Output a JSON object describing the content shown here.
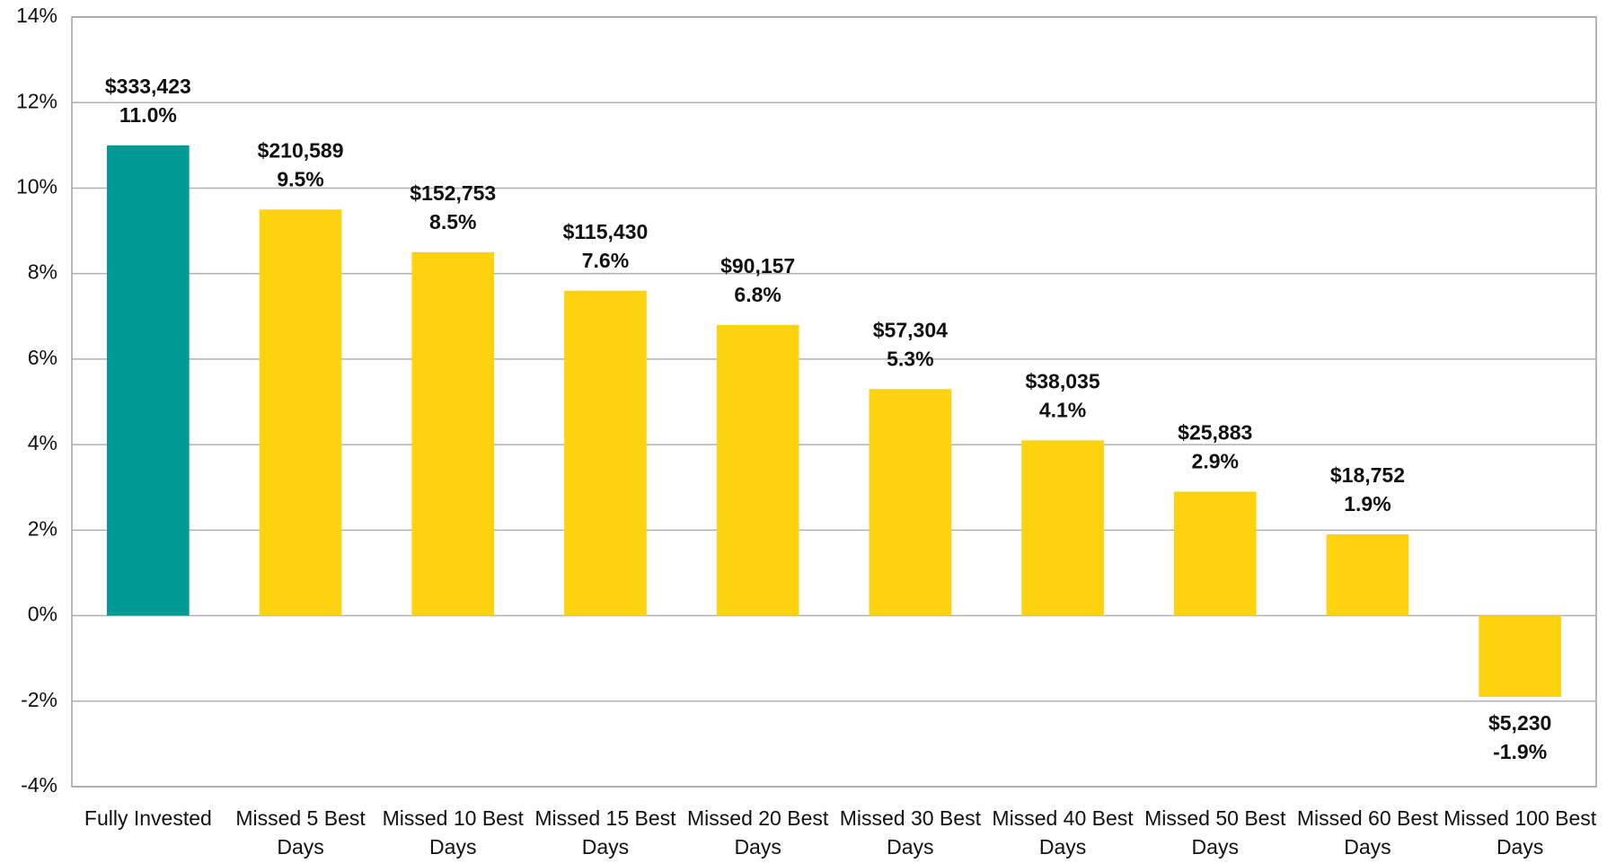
{
  "chart_data": {
    "type": "bar",
    "categories": [
      "Fully Invested",
      "Missed 5 Best Days",
      "Missed 10 Best Days",
      "Missed 15 Best Days",
      "Missed 20 Best Days",
      "Missed 30 Best Days",
      "Missed 40 Best Days",
      "Missed 50 Best Days",
      "Missed 60 Best Days",
      "Missed 100 Best Days"
    ],
    "values": [
      11.0,
      9.5,
      8.5,
      7.6,
      6.8,
      5.3,
      4.1,
      2.9,
      1.9,
      -1.9
    ],
    "value_labels": [
      "11.0%",
      "9.5%",
      "8.5%",
      "7.6%",
      "6.8%",
      "5.3%",
      "4.1%",
      "2.9%",
      "1.9%",
      "-1.9%"
    ],
    "ending_value_labels": [
      "$333,423",
      "$210,589",
      "$152,753",
      "$115,430",
      "$90,157",
      "$57,304",
      "$38,035",
      "$25,883",
      "$18,752",
      "$5,230"
    ],
    "colors": [
      "#009b95",
      "#fdd20e",
      "#fdd20e",
      "#fdd20e",
      "#fdd20e",
      "#fdd20e",
      "#fdd20e",
      "#fdd20e",
      "#fdd20e",
      "#fdd20e"
    ],
    "ylim": [
      -4,
      14
    ],
    "yticks": [
      {
        "value": -4,
        "label": "-4%"
      },
      {
        "value": -2,
        "label": "-2%"
      },
      {
        "value": 0,
        "label": "0%"
      },
      {
        "value": 2,
        "label": "2%"
      },
      {
        "value": 4,
        "label": "4%"
      },
      {
        "value": 6,
        "label": "6%"
      },
      {
        "value": 8,
        "label": "8%"
      },
      {
        "value": 10,
        "label": "10%"
      },
      {
        "value": 12,
        "label": "12%"
      },
      {
        "value": 14,
        "label": "14%"
      }
    ],
    "grid": true
  }
}
